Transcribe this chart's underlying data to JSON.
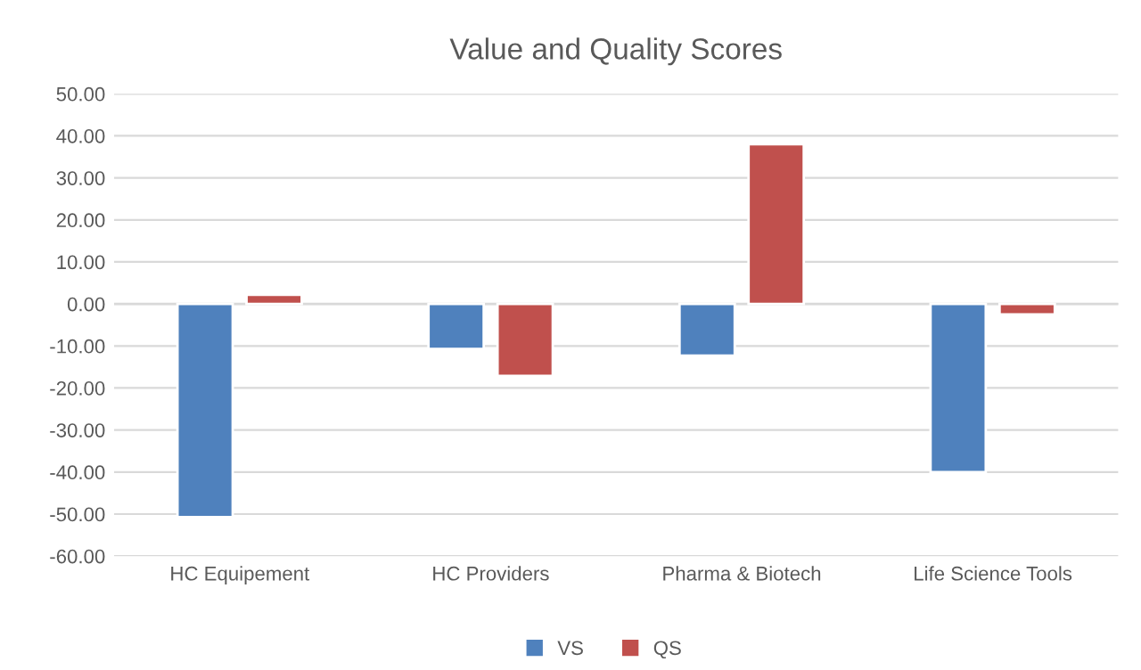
{
  "chart_data": {
    "type": "bar",
    "title": "Value and Quality Scores",
    "categories": [
      "HC Equipement",
      "HC Providers",
      "Pharma & Biotech",
      "Life Science Tools"
    ],
    "series": [
      {
        "name": "VS",
        "color": "#4f81bd",
        "values": [
          -50.7,
          -10.7,
          -12.3,
          -40.0
        ]
      },
      {
        "name": "QS",
        "color": "#c0504d",
        "values": [
          2.2,
          -17.1,
          38.0,
          -2.5
        ]
      }
    ],
    "ylim": [
      -60,
      50
    ],
    "yticks": [
      {
        "value": -60,
        "label": "-60.00"
      },
      {
        "value": -50,
        "label": "-50.00"
      },
      {
        "value": -40,
        "label": "-40.00"
      },
      {
        "value": -30,
        "label": "-30.00"
      },
      {
        "value": -20,
        "label": "-20.00"
      },
      {
        "value": -10,
        "label": "-10.00"
      },
      {
        "value": 0,
        "label": "0.00"
      },
      {
        "value": 10,
        "label": "10.00"
      },
      {
        "value": 20,
        "label": "20.00"
      },
      {
        "value": 30,
        "label": "30.00"
      },
      {
        "value": 40,
        "label": "40.00"
      },
      {
        "value": 50,
        "label": "50.00"
      }
    ],
    "grid": "y",
    "legend": "bottom"
  }
}
